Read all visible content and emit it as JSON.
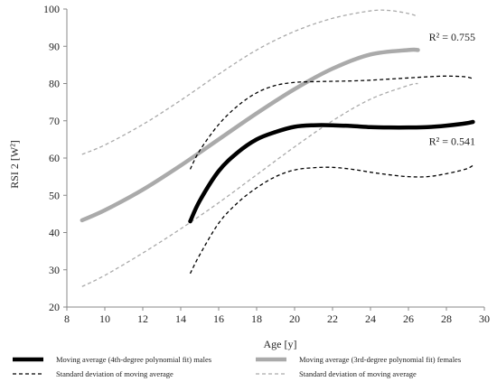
{
  "chart_data": {
    "type": "line",
    "xlabel": "Age [y]",
    "ylabel": "RSI 2 [W²]",
    "xlim": [
      8,
      30
    ],
    "ylim": [
      20,
      100
    ],
    "xticks": [
      8,
      10,
      12,
      14,
      16,
      18,
      20,
      22,
      24,
      26,
      28,
      30
    ],
    "yticks": [
      20,
      30,
      40,
      50,
      60,
      70,
      80,
      90,
      100
    ],
    "grid": false,
    "legend_position": "bottom",
    "annotations": [
      {
        "text": "R² = 0.755",
        "x": 28.3,
        "y": 91.5
      },
      {
        "text": "R² = 0.541",
        "x": 28.3,
        "y": 63.5
      }
    ],
    "series": [
      {
        "name": "Moving average (4th-degree polynomial fit) males",
        "color": "#000000",
        "style": "solid",
        "weight": "thick",
        "x": [
          14.5,
          15,
          16,
          17,
          18,
          19,
          20,
          21,
          22,
          23,
          24,
          25,
          26,
          27,
          28,
          29,
          29.4
        ],
        "y": [
          43,
          48.5,
          56.5,
          61.5,
          65,
          67,
          68.4,
          68.8,
          68.8,
          68.6,
          68.3,
          68.2,
          68.2,
          68.3,
          68.7,
          69.3,
          69.7
        ]
      },
      {
        "name": "Moving average (3rd-degree polynomial fit) females",
        "color": "#aaaaaa",
        "style": "solid",
        "weight": "thick",
        "x": [
          8.8,
          10,
          12,
          14,
          16,
          18,
          20,
          22,
          24,
          26,
          26.5
        ],
        "y": [
          43.3,
          46,
          51.5,
          58,
          65,
          72,
          78.5,
          84,
          87.8,
          89,
          89
        ]
      },
      {
        "name": "Standard deviation of moving average",
        "color": "#000000",
        "style": "dashed",
        "x": [
          14.5,
          15,
          16,
          17,
          18,
          19,
          20,
          21,
          22,
          23,
          24,
          25,
          26,
          27,
          28,
          29,
          29.4
        ],
        "y": [
          57,
          62,
          69,
          74,
          77.5,
          79.5,
          80.3,
          80.5,
          80.6,
          80.7,
          80.9,
          81.2,
          81.5,
          81.8,
          82,
          81.8,
          81.3
        ]
      },
      {
        "color": "#000000",
        "style": "dashed",
        "x": [
          14.5,
          15,
          16,
          17,
          18,
          19,
          20,
          21,
          22,
          23,
          24,
          25,
          26,
          27,
          28,
          29,
          29.4
        ],
        "y": [
          29,
          34,
          42.5,
          48,
          52,
          55,
          56.8,
          57.4,
          57.5,
          57,
          56.2,
          55.5,
          55,
          55,
          55.8,
          57,
          58
        ]
      },
      {
        "name": "Standard deviation of moving average",
        "color": "#aaaaaa",
        "style": "dashed",
        "x": [
          8.8,
          10,
          12,
          14,
          16,
          18,
          20,
          22,
          24,
          25,
          26,
          26.5
        ],
        "y": [
          61,
          63.5,
          69,
          75.5,
          82.5,
          89,
          94,
          97.5,
          99.5,
          99.6,
          98.8,
          98
        ]
      },
      {
        "color": "#aaaaaa",
        "style": "dashed",
        "x": [
          8.8,
          10,
          12,
          14,
          16,
          18,
          20,
          22,
          24,
          26,
          26.5
        ],
        "y": [
          25.5,
          28.5,
          34.5,
          41,
          48,
          55.5,
          63,
          70,
          75.8,
          79.5,
          80
        ]
      }
    ]
  },
  "legend": [
    {
      "label": "Moving average (4th-degree polynomial fit) males",
      "color": "#000000",
      "style": "solid"
    },
    {
      "label": "Moving average (3rd-degree polynomial fit) females",
      "color": "#aaaaaa",
      "style": "solid"
    },
    {
      "label": "Standard deviation of moving average",
      "color": "#000000",
      "style": "dashed"
    },
    {
      "label": "Standard deviation of moving average",
      "color": "#aaaaaa",
      "style": "dashed"
    }
  ]
}
